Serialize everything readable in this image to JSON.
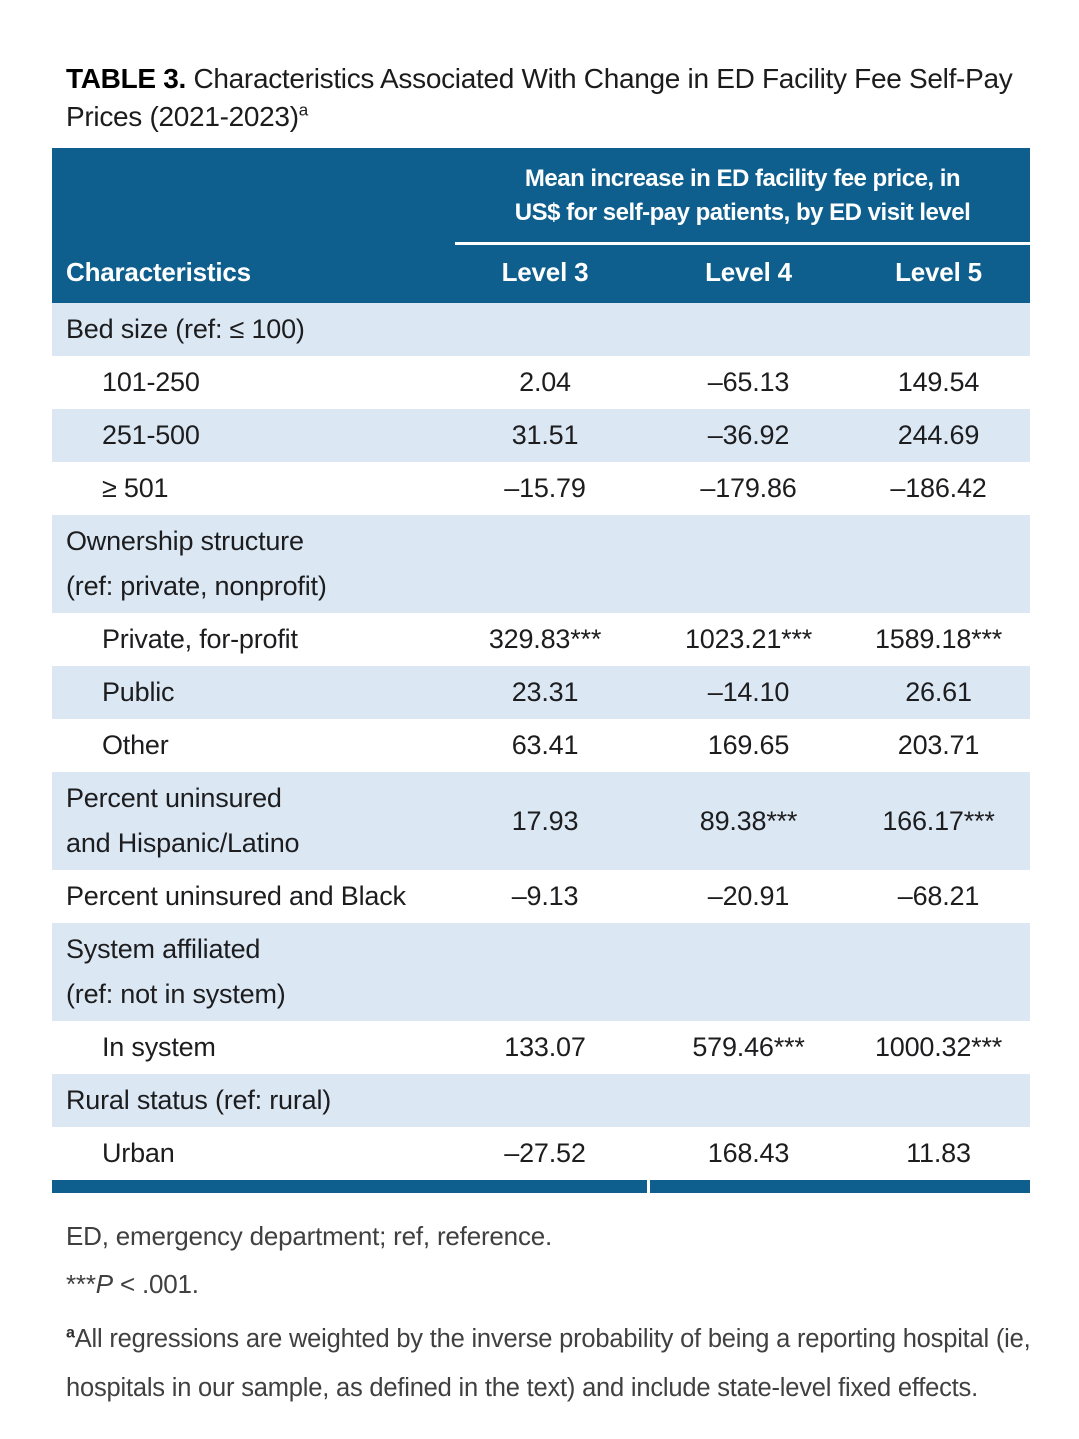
{
  "title": {
    "label": "TABLE 3.",
    "text": " Characteristics Associated With Change in ED Facility Fee Self-Pay Prices (2021-2023)",
    "sup": "a"
  },
  "table": {
    "col_header": "Characteristics",
    "spanner": {
      "line1": "Mean increase in ED facility fee price, in",
      "line2": "US$ for self-pay patients, by ED visit level"
    },
    "level_headers": [
      "Level 3",
      "Level 4",
      "Level 5"
    ],
    "rows": [
      {
        "label": "Bed size (ref: ≤ 100)",
        "indent": false,
        "shaded": true,
        "values": [
          "",
          "",
          ""
        ]
      },
      {
        "label": "101-250",
        "indent": true,
        "shaded": false,
        "values": [
          "2.04",
          "–65.13",
          "149.54"
        ]
      },
      {
        "label": "251-500",
        "indent": true,
        "shaded": true,
        "values": [
          "31.51",
          "–36.92",
          "244.69"
        ]
      },
      {
        "label": "≥ 501",
        "indent": true,
        "shaded": false,
        "values": [
          "–15.79",
          "–179.86",
          "–186.42"
        ]
      },
      {
        "label": "Ownership structure\n(ref: private, nonprofit)",
        "indent": false,
        "shaded": true,
        "values": [
          "",
          "",
          ""
        ]
      },
      {
        "label": "Private, for-profit",
        "indent": true,
        "shaded": false,
        "values": [
          "329.83***",
          "1023.21***",
          "1589.18***"
        ]
      },
      {
        "label": "Public",
        "indent": true,
        "shaded": true,
        "values": [
          "23.31",
          "–14.10",
          "26.61"
        ]
      },
      {
        "label": "Other",
        "indent": true,
        "shaded": false,
        "values": [
          "63.41",
          "169.65",
          "203.71"
        ]
      },
      {
        "label": "Percent uninsured\nand Hispanic/Latino",
        "indent": false,
        "shaded": true,
        "values": [
          "17.93",
          "89.38***",
          "166.17***"
        ]
      },
      {
        "label": "Percent uninsured and Black",
        "indent": false,
        "shaded": false,
        "values": [
          "–9.13",
          "–20.91",
          "–68.21"
        ]
      },
      {
        "label": "System affiliated\n(ref: not in system)",
        "indent": false,
        "shaded": true,
        "values": [
          "",
          "",
          ""
        ]
      },
      {
        "label": "In system",
        "indent": true,
        "shaded": false,
        "values": [
          "133.07",
          "579.46***",
          "1000.32***"
        ]
      },
      {
        "label": "Rural status (ref: rural)",
        "indent": false,
        "shaded": true,
        "values": [
          "",
          "",
          ""
        ]
      },
      {
        "label": "Urban",
        "indent": true,
        "shaded": false,
        "values": [
          "–27.52",
          "168.43",
          "11.83"
        ]
      }
    ],
    "colors": {
      "header_bg": "#0e5f8d",
      "shaded_row_bg": "#dbe8f4",
      "rule_white": "#ffffff"
    }
  },
  "footnotes": {
    "abbrev": "ED, emergency department; ref, reference.",
    "sig": {
      "stars": "***",
      "p": "P",
      "rest": " < .001."
    },
    "weighting": {
      "sup": "a",
      "text": "All regressions are weighted by the inverse probability of being a reporting hospital (ie, hospitals in our sample, as defined in the text) and include state-level fixed effects."
    }
  }
}
